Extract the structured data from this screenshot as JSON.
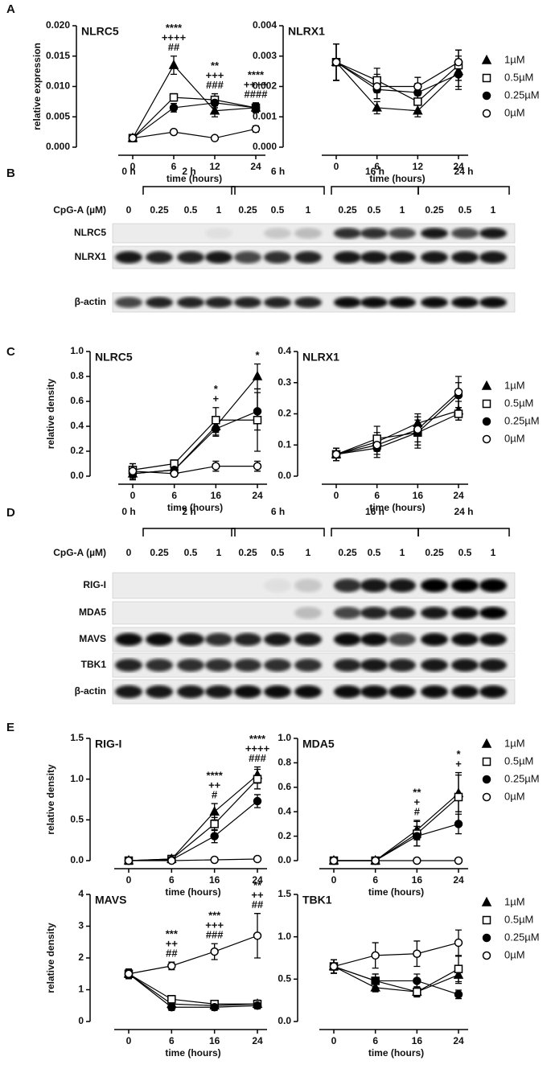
{
  "panel_labels": [
    "A",
    "B",
    "C",
    "D",
    "E"
  ],
  "blots": [
    {
      "times": [
        "0 h",
        "2 h",
        "6 h",
        "16 h",
        "24 h"
      ],
      "treatment": "CpG-A (µM)",
      "doses": [
        "0",
        "0.25",
        "0.5",
        "1",
        "0.25",
        "0.5",
        "1",
        "0.25",
        "0.5",
        "1",
        "0.25",
        "0.5",
        "1"
      ],
      "proteins": [
        "NLRC5",
        "NLRX1",
        "β-actin"
      ]
    },
    {
      "times": [
        "0 h",
        "2 h",
        "6 h",
        "16 h",
        "24 h"
      ],
      "treatment": "CpG-A (µM)",
      "doses": [
        "0",
        "0.25",
        "0.5",
        "1",
        "0.25",
        "0.5",
        "1",
        "0.25",
        "0.5",
        "1",
        "0.25",
        "0.5",
        "1"
      ],
      "proteins": [
        "RIG-I",
        "MDA5",
        "MAVS",
        "TBK1",
        "β-actin"
      ]
    }
  ],
  "chart_data": [
    {
      "type": "line",
      "title": "NLRC5",
      "xlabel": "time (hours)",
      "ylabel": "relative expression",
      "categories": [
        "0",
        "6",
        "12",
        "24"
      ],
      "ylim": [
        0,
        0.02
      ],
      "yticks": [
        {
          "value": 0,
          "label": "0.000"
        },
        0.005,
        {
          "value": 0.01,
          "label": "0.010"
        },
        0.015,
        {
          "value": 0.02,
          "label": "0.020"
        }
      ],
      "series": [
        {
          "marker": "triangle",
          "color": "#000000",
          "values": [
            0.0015,
            0.0135,
            0.006,
            0.0065
          ],
          "errors": [
            0.0002,
            0.0015,
            0.001,
            0.0008
          ]
        },
        {
          "marker": "square-open",
          "color": "#000000",
          "values": [
            0.0015,
            0.0082,
            0.0078,
            0.0065
          ],
          "errors": [
            0.0002,
            0.0006,
            0.001,
            0.0008
          ]
        },
        {
          "marker": "circle",
          "color": "#000000",
          "values": [
            0.0015,
            0.0065,
            0.0073,
            0.0065
          ],
          "errors": [
            0.0002,
            0.0007,
            0.0008,
            0.0007
          ]
        },
        {
          "marker": "circle-open",
          "color": "#000000",
          "values": [
            0.0015,
            0.0025,
            0.0015,
            0.003
          ],
          "errors": [
            0.0002,
            0.0002,
            0.0002,
            0.0005
          ]
        }
      ],
      "annotations": [
        null,
        [
          "****",
          "++++",
          "##"
        ],
        [
          "**",
          "+++",
          "###"
        ],
        [
          "****",
          "++++",
          "####"
        ]
      ]
    },
    {
      "type": "line",
      "title": "NLRX1",
      "xlabel": "time (hours)",
      "categories": [
        "0",
        "6",
        "12",
        "24"
      ],
      "ylim": [
        0,
        0.004
      ],
      "yticks": [
        {
          "value": 0,
          "label": "0.000"
        },
        0.001,
        0.002,
        0.003,
        0.004
      ],
      "legend": "right",
      "series": [
        {
          "name": "1µM",
          "marker": "triangle",
          "color": "#000000",
          "values": [
            0.0028,
            0.0013,
            0.0012,
            0.0025
          ],
          "errors": [
            0.0006,
            0.0002,
            0.0002,
            0.0005
          ]
        },
        {
          "name": "0.5µM",
          "marker": "square-open",
          "color": "#000000",
          "values": [
            0.0028,
            0.0022,
            0.0015,
            0.0027
          ],
          "errors": [
            0.0006,
            0.0004,
            0.0003,
            0.0005
          ]
        },
        {
          "name": "0.25µM",
          "marker": "circle",
          "color": "#000000",
          "values": [
            0.0028,
            0.0019,
            0.0018,
            0.0024
          ],
          "errors": [
            0.0006,
            0.0003,
            0.0003,
            0.0005
          ]
        },
        {
          "name": "0µM",
          "marker": "circle-open",
          "color": "#000000",
          "values": [
            0.0028,
            0.002,
            0.002,
            0.0028
          ],
          "errors": [
            0.0006,
            0.0004,
            0.0003,
            0.0004
          ]
        }
      ]
    },
    {
      "type": "line",
      "title": "NLRC5",
      "xlabel": "time (hours)",
      "ylabel": "relative density",
      "categories": [
        "0",
        "6",
        "16",
        "24"
      ],
      "ylim": [
        0,
        1
      ],
      "yticks": [
        {
          "value": 0,
          "label": "0.0"
        },
        0.2,
        0.4,
        0.6,
        0.8,
        {
          "value": 1,
          "label": "1.0"
        }
      ],
      "series": [
        {
          "marker": "triangle",
          "color": "#000000",
          "values": [
            0.02,
            0.05,
            0.4,
            0.8
          ],
          "errors": [
            0.05,
            0.03,
            0.08,
            0.1
          ]
        },
        {
          "marker": "square-open",
          "color": "#000000",
          "values": [
            0.05,
            0.1,
            0.45,
            0.45
          ],
          "errors": [
            0.05,
            0.03,
            0.1,
            0.25
          ]
        },
        {
          "marker": "circle",
          "color": "#000000",
          "values": [
            0.02,
            0.05,
            0.38,
            0.52
          ],
          "errors": [
            0.03,
            0.03,
            0.05,
            0.15
          ]
        },
        {
          "marker": "circle-open",
          "color": "#000000",
          "values": [
            0.04,
            0.02,
            0.08,
            0.08
          ],
          "errors": [
            0.06,
            0.02,
            0.04,
            0.04
          ]
        }
      ],
      "annotations": [
        null,
        null,
        [
          "*",
          "+"
        ],
        [
          "*"
        ]
      ]
    },
    {
      "type": "line",
      "title": "NLRX1",
      "xlabel": "time (hours)",
      "categories": [
        "0",
        "6",
        "16",
        "24"
      ],
      "ylim": [
        0,
        0.4
      ],
      "yticks": [
        {
          "value": 0,
          "label": "0.0"
        },
        0.1,
        0.2,
        0.3,
        0.4
      ],
      "legend": "right",
      "series": [
        {
          "name": "1µM",
          "marker": "triangle",
          "color": "#000000",
          "values": [
            0.07,
            0.11,
            0.17,
            0.21
          ],
          "errors": [
            0.02,
            0.03,
            0.03,
            0.03
          ]
        },
        {
          "name": "0.5µM",
          "marker": "square-open",
          "color": "#000000",
          "values": [
            0.07,
            0.12,
            0.14,
            0.2
          ],
          "errors": [
            0.02,
            0.04,
            0.04,
            0.02
          ]
        },
        {
          "name": "0.25µM",
          "marker": "circle",
          "color": "#000000",
          "values": [
            0.07,
            0.09,
            0.14,
            0.26
          ],
          "errors": [
            0.02,
            0.03,
            0.05,
            0.04
          ]
        },
        {
          "name": "0µM",
          "marker": "circle-open",
          "color": "#000000",
          "values": [
            0.07,
            0.1,
            0.15,
            0.27
          ],
          "errors": [
            0.02,
            0.03,
            0.04,
            0.05
          ]
        }
      ]
    },
    {
      "type": "line",
      "title": "RIG-I",
      "xlabel": "time (hours)",
      "ylabel": "relative density",
      "categories": [
        "0",
        "6",
        "16",
        "24"
      ],
      "ylim": [
        0,
        1.5
      ],
      "yticks": [
        {
          "value": 0,
          "label": "0.0"
        },
        0.5,
        {
          "value": 1,
          "label": "1.0"
        },
        1.5
      ],
      "series": [
        {
          "marker": "triangle",
          "color": "#000000",
          "values": [
            0,
            0.02,
            0.6,
            1.05
          ],
          "errors": [
            0,
            0.01,
            0.1,
            0.1
          ]
        },
        {
          "marker": "square-open",
          "color": "#000000",
          "values": [
            0,
            0.02,
            0.45,
            1.0
          ],
          "errors": [
            0,
            0.01,
            0.08,
            0.12
          ]
        },
        {
          "marker": "circle",
          "color": "#000000",
          "values": [
            0,
            0.01,
            0.3,
            0.73
          ],
          "errors": [
            0,
            0.01,
            0.08,
            0.08
          ]
        },
        {
          "marker": "circle-open",
          "color": "#000000",
          "values": [
            0,
            0,
            0.01,
            0.02
          ],
          "errors": [
            0,
            0,
            0.01,
            0.01
          ]
        }
      ],
      "annotations": [
        null,
        null,
        [
          "****",
          "++",
          "#"
        ],
        [
          "****",
          "++++",
          "###"
        ]
      ]
    },
    {
      "type": "line",
      "title": "MDA5",
      "xlabel": "time (hours)",
      "categories": [
        "0",
        "6",
        "16",
        "24"
      ],
      "ylim": [
        0,
        1
      ],
      "yticks": [
        {
          "value": 0,
          "label": "0.0"
        },
        0.2,
        0.4,
        0.6,
        0.8,
        {
          "value": 1,
          "label": "1.0"
        }
      ],
      "legend": "right",
      "series": [
        {
          "name": "1µM",
          "marker": "triangle",
          "color": "#000000",
          "values": [
            0,
            0,
            0.25,
            0.55
          ],
          "errors": [
            0,
            0,
            0.08,
            0.15
          ]
        },
        {
          "name": "0.5µM",
          "marker": "square-open",
          "color": "#000000",
          "values": [
            0,
            0,
            0.22,
            0.52
          ],
          "errors": [
            0,
            0,
            0.1,
            0.2
          ]
        },
        {
          "name": "0.25µM",
          "marker": "circle",
          "color": "#000000",
          "values": [
            0,
            0,
            0.2,
            0.3
          ],
          "errors": [
            0,
            0,
            0.08,
            0.08
          ]
        },
        {
          "name": "0µM",
          "marker": "circle-open",
          "color": "#000000",
          "values": [
            0,
            0,
            0,
            0
          ],
          "errors": [
            0,
            0,
            0,
            0
          ]
        }
      ],
      "annotations": [
        null,
        null,
        [
          "**",
          "+",
          "#"
        ],
        [
          "*",
          "+"
        ]
      ]
    },
    {
      "type": "line",
      "title": "MAVS",
      "xlabel": "time (hours)",
      "ylabel": "relative density",
      "categories": [
        "0",
        "6",
        "16",
        "24"
      ],
      "ylim": [
        0,
        4
      ],
      "yticks": [
        0,
        1,
        2,
        3,
        4
      ],
      "series": [
        {
          "marker": "triangle",
          "color": "#000000",
          "values": [
            1.5,
            0.55,
            0.5,
            0.55
          ],
          "errors": [
            0.15,
            0.12,
            0.1,
            0.12
          ]
        },
        {
          "marker": "square-open",
          "color": "#000000",
          "values": [
            1.5,
            0.7,
            0.55,
            0.55
          ],
          "errors": [
            0.15,
            0.12,
            0.1,
            0.12
          ]
        },
        {
          "marker": "circle",
          "color": "#000000",
          "values": [
            1.5,
            0.45,
            0.45,
            0.5
          ],
          "errors": [
            0.15,
            0.1,
            0.1,
            0.1
          ]
        },
        {
          "marker": "circle-open",
          "color": "#000000",
          "values": [
            1.5,
            1.75,
            2.2,
            2.7
          ],
          "errors": [
            0.15,
            0.12,
            0.25,
            0.7
          ]
        }
      ],
      "annotations": [
        null,
        [
          "***",
          "++",
          "##"
        ],
        [
          "***",
          "+++",
          "###"
        ],
        [
          "**",
          "++",
          "##"
        ]
      ]
    },
    {
      "type": "line",
      "title": "TBK1",
      "xlabel": "time (hours)",
      "categories": [
        "0",
        "6",
        "16",
        "24"
      ],
      "ylim": [
        0,
        1.5
      ],
      "yticks": [
        {
          "value": 0,
          "label": "0.0"
        },
        0.5,
        {
          "value": 1,
          "label": "1.0"
        },
        1.5
      ],
      "legend": "right",
      "series": [
        {
          "name": "1µM",
          "marker": "triangle",
          "color": "#000000",
          "values": [
            0.65,
            0.4,
            0.35,
            0.55
          ],
          "errors": [
            0.08,
            0.05,
            0.05,
            0.1
          ]
        },
        {
          "name": "0.5µM",
          "marker": "square-open",
          "color": "#000000",
          "values": [
            0.65,
            0.48,
            0.35,
            0.62
          ],
          "errors": [
            0.08,
            0.08,
            0.06,
            0.15
          ]
        },
        {
          "name": "0.25µM",
          "marker": "circle",
          "color": "#000000",
          "values": [
            0.65,
            0.48,
            0.48,
            0.32
          ],
          "errors": [
            0.08,
            0.08,
            0.08,
            0.05
          ]
        },
        {
          "name": "0µM",
          "marker": "circle-open",
          "color": "#000000",
          "values": [
            0.65,
            0.78,
            0.8,
            0.93
          ],
          "errors": [
            0.08,
            0.15,
            0.15,
            0.15
          ]
        }
      ]
    }
  ]
}
